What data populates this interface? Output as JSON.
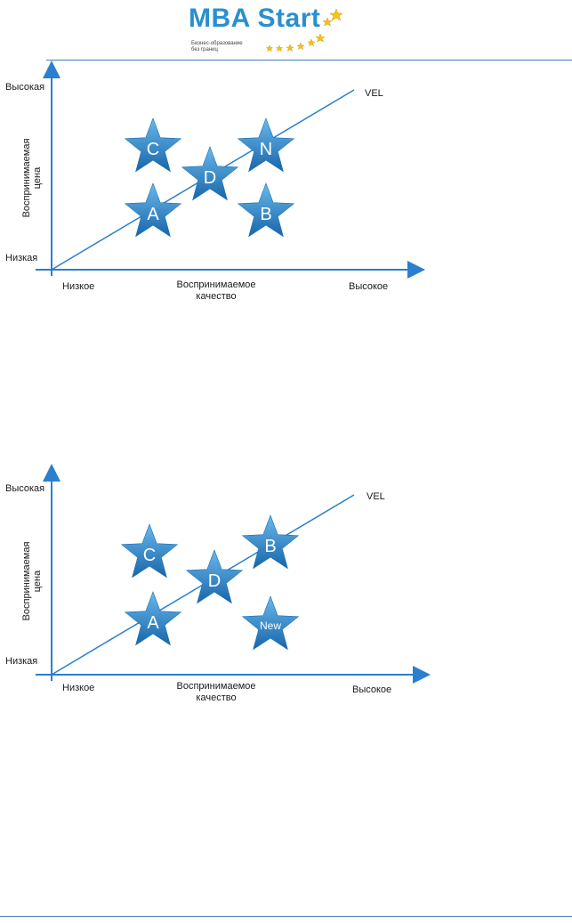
{
  "header": {
    "logo_title": "MBA Start",
    "logo_subtitle_line1": "Бизнес-образование",
    "logo_subtitle_line2": "без границ"
  },
  "colors": {
    "axis": "#2a7fd0",
    "star_light": "#6ab8ec",
    "star_dark": "#1866a9",
    "rule": "#4a7fb5"
  },
  "diagrams": [
    {
      "y_high": "Высокая",
      "y_low": "Низкая",
      "y_axis_line1": "Воспринимаемая",
      "y_axis_line2": "цена",
      "x_low": "Низкое",
      "x_axis_line1": "Воспринимаемое",
      "x_axis_line2": "качество",
      "x_high": "Высокое",
      "line_label": "VEL",
      "stars": [
        "C",
        "D",
        "N",
        "A",
        "B"
      ]
    },
    {
      "y_high": "Высокая",
      "y_low": "Низкая",
      "y_axis_line1": "Воспринимаемая",
      "y_axis_line2": "цена",
      "x_low": "Низкое",
      "x_axis_line1": "Воспринимаемое",
      "x_axis_line2": "качество",
      "x_high": "Высокое",
      "line_label": "VEL",
      "stars": [
        "C",
        "D",
        "B",
        "A",
        "New"
      ]
    }
  ]
}
